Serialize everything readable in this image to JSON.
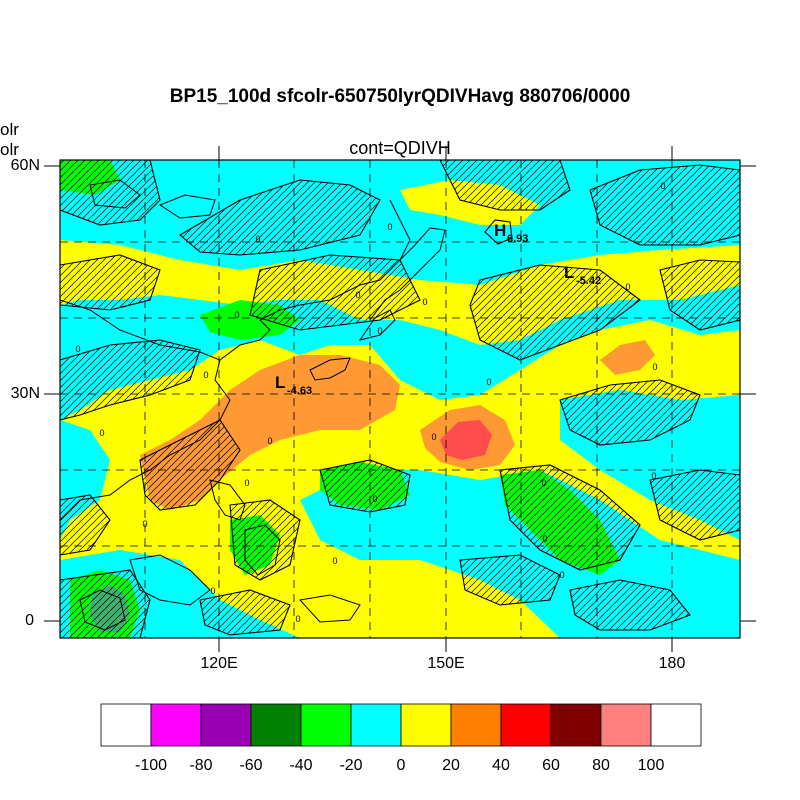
{
  "title": "BP15_100d sfcolr-650750lyrQDIVHavg  880706/0000",
  "subtitle": "cont=QDIVH",
  "left_labels": [
    "olr",
    "olr"
  ],
  "map": {
    "lat_ticks": [
      "60N",
      "30N",
      "0"
    ],
    "lon_ticks": [
      "120E",
      "150E",
      "180"
    ],
    "extremes": [
      {
        "kind": "L",
        "value": "-4.63"
      },
      {
        "kind": "H",
        "value": "6.93"
      },
      {
        "kind": "L",
        "value": "-5.42"
      }
    ],
    "contour_label": "0"
  },
  "colorbar": {
    "labels": [
      "-100",
      "-80",
      "-60",
      "-40",
      "-20",
      "0",
      "20",
      "40",
      "60",
      "80",
      "100"
    ],
    "colors": [
      "#ffffff",
      "#ff00ff",
      "#9900b3",
      "#008000",
      "#00ff00",
      "#00ffff",
      "#ffff00",
      "#ff8000",
      "#ff0000",
      "#800000",
      "#ff8080",
      "#ffffff"
    ]
  }
}
